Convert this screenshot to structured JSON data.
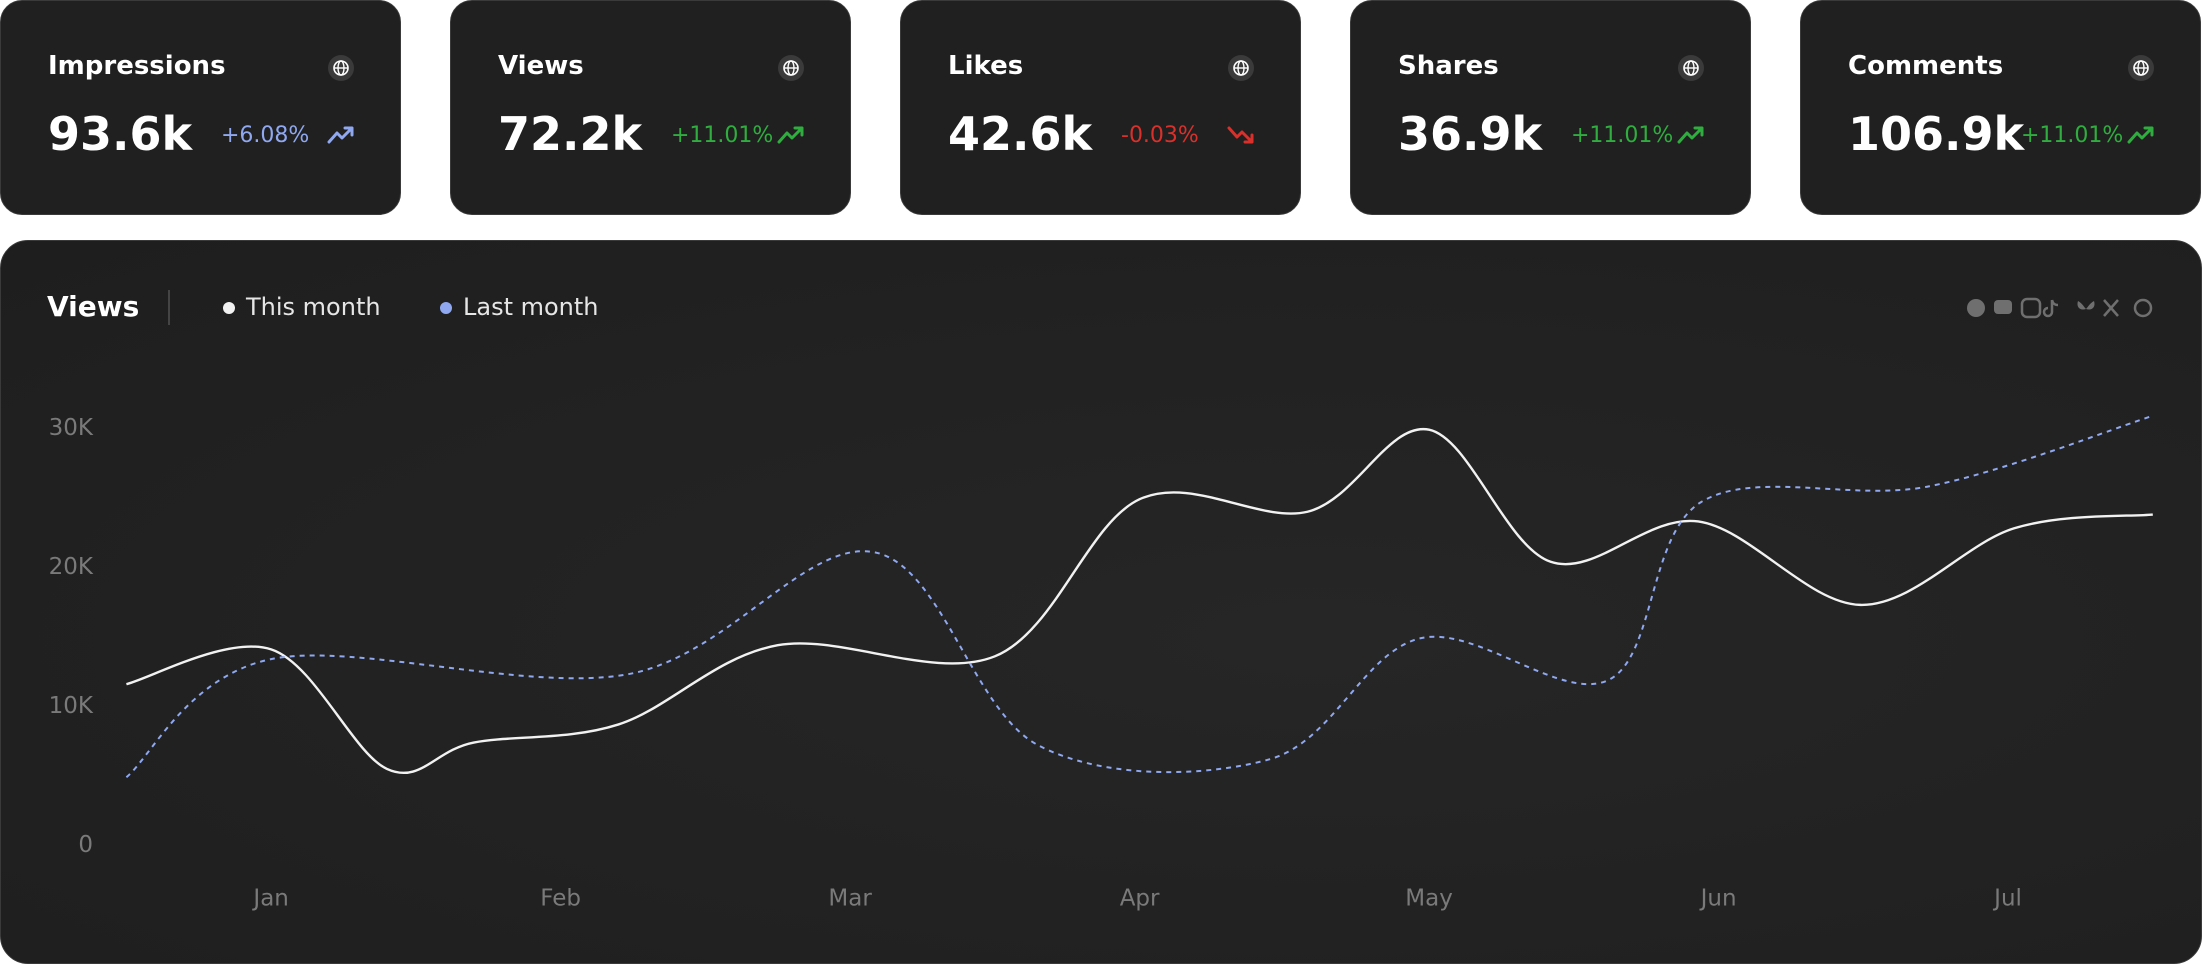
{
  "cards": [
    {
      "title": "Impressions",
      "value": "93.6k",
      "change": "+6.08%",
      "trend": "up",
      "color": "#8fa8f0"
    },
    {
      "title": "Views",
      "value": "72.2k",
      "change": "+11.01%",
      "trend": "up",
      "color": "#2fae3f"
    },
    {
      "title": "Likes",
      "value": "42.6k",
      "change": "-0.03%",
      "trend": "down",
      "color": "#d9302b"
    },
    {
      "title": "Shares",
      "value": "36.9k",
      "change": "+11.01%",
      "trend": "up",
      "color": "#2fae3f"
    },
    {
      "title": "Comments",
      "value": "106.9k",
      "change": "+11.01%",
      "trend": "up",
      "color": "#2fae3f"
    }
  ],
  "chart_data": {
    "type": "line",
    "title": "Views",
    "xlim": [
      -0.5,
      6.5
    ],
    "xticks": [
      {
        "value": 0,
        "label": "Jan"
      },
      {
        "value": 1,
        "label": "Feb"
      },
      {
        "value": 2,
        "label": "Mar"
      },
      {
        "value": 3,
        "label": "Apr"
      },
      {
        "value": 4,
        "label": "May"
      },
      {
        "value": 5,
        "label": "Jun"
      },
      {
        "value": 6,
        "label": "Jul"
      }
    ],
    "ylim": [
      0,
      35000
    ],
    "yticks": [
      0,
      {
        "value": 10000,
        "label": "10K"
      },
      {
        "value": 20000,
        "label": "20K"
      },
      {
        "value": 30000,
        "label": "30K"
      }
    ],
    "series": [
      {
        "name": "This month",
        "color": "#f2f2f2",
        "dashed": false,
        "x": [
          -0.5,
          0,
          0.4,
          0.7,
          1.2,
          1.75,
          2.5,
          3.0,
          3.58,
          4.0,
          4.42,
          4.93,
          5.49,
          6.02,
          6.5
        ],
        "values": [
          11600,
          14100,
          5500,
          7400,
          8700,
          14400,
          13600,
          24900,
          24000,
          29900,
          20400,
          23300,
          17300,
          22800,
          23800
        ]
      },
      {
        "name": "Last month",
        "color": "#8fa8f0",
        "dashed": true,
        "x": [
          -0.5,
          0,
          1.23,
          2.08,
          2.65,
          3.45,
          3.97,
          4.62,
          4.94,
          5.72,
          6.5
        ],
        "values": [
          4900,
          13400,
          12300,
          21100,
          7200,
          6200,
          14900,
          11900,
          24700,
          25800,
          30900
        ]
      }
    ]
  }
}
